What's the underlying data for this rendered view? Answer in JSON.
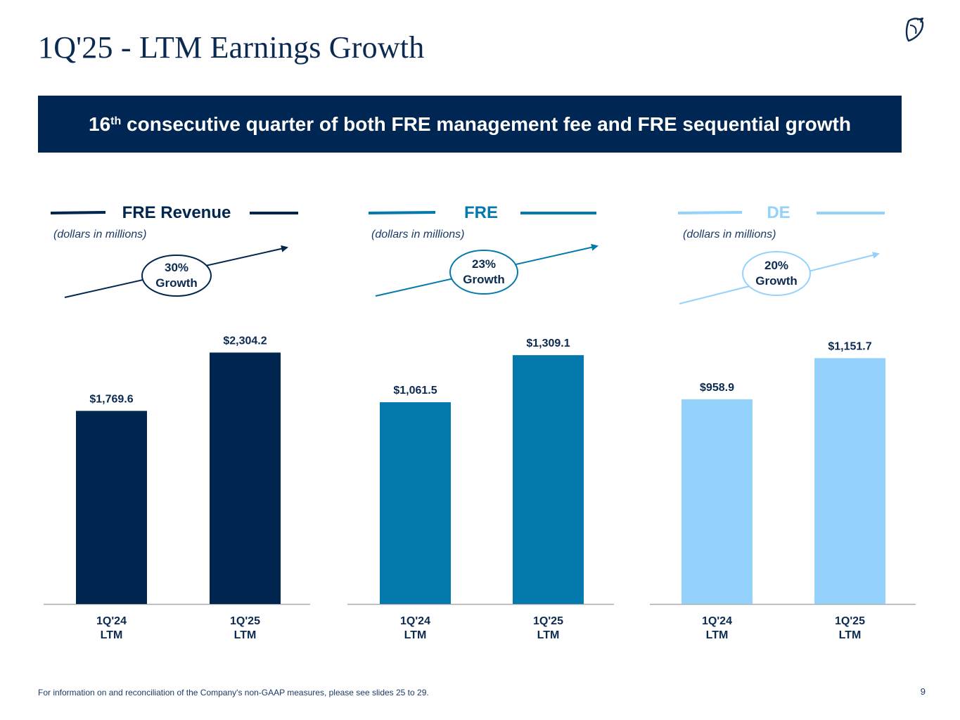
{
  "header": {
    "title": "1Q'25 - LTM Earnings Growth",
    "logo_icon": "bird-logo-icon"
  },
  "banner": {
    "number": "16",
    "superscript": "th",
    "text": " consecutive quarter of both FRE management fee and FRE sequential growth"
  },
  "chart_data": [
    {
      "type": "bar",
      "title": "FRE Revenue",
      "unit_note": "(dollars in millions)",
      "categories": [
        "1Q'24\nLTM",
        "1Q'25\nLTM"
      ],
      "values": [
        1769.6,
        2304.2
      ],
      "value_labels": [
        "$1,769.6",
        "$2,304.2"
      ],
      "growth_label": [
        "30%",
        "Growth"
      ],
      "color": "#00264f",
      "ylim": [
        0,
        2700
      ]
    },
    {
      "type": "bar",
      "title": "FRE",
      "unit_note": "(dollars in millions)",
      "categories": [
        "1Q'24\nLTM",
        "1Q'25\nLTM"
      ],
      "values": [
        1061.5,
        1309.1
      ],
      "value_labels": [
        "$1,061.5",
        "$1,309.1"
      ],
      "growth_label": [
        "23%",
        "Growth"
      ],
      "color": "#0379ae",
      "ylim": [
        0,
        1550
      ]
    },
    {
      "type": "bar",
      "title": "DE",
      "unit_note": "(dollars in millions)",
      "categories": [
        "1Q'24\nLTM",
        "1Q'25\nLTM"
      ],
      "values": [
        958.9,
        1151.7
      ],
      "value_labels": [
        "$958.9",
        "$1,151.7"
      ],
      "growth_label": [
        "20%",
        "Growth"
      ],
      "color": "#94d2fb",
      "ylim": [
        0,
        1380
      ]
    }
  ],
  "footer": {
    "note": "For information on and reconciliation of the Company's non-GAAP measures, please see slides 25 to 29.",
    "page_number": "9"
  }
}
